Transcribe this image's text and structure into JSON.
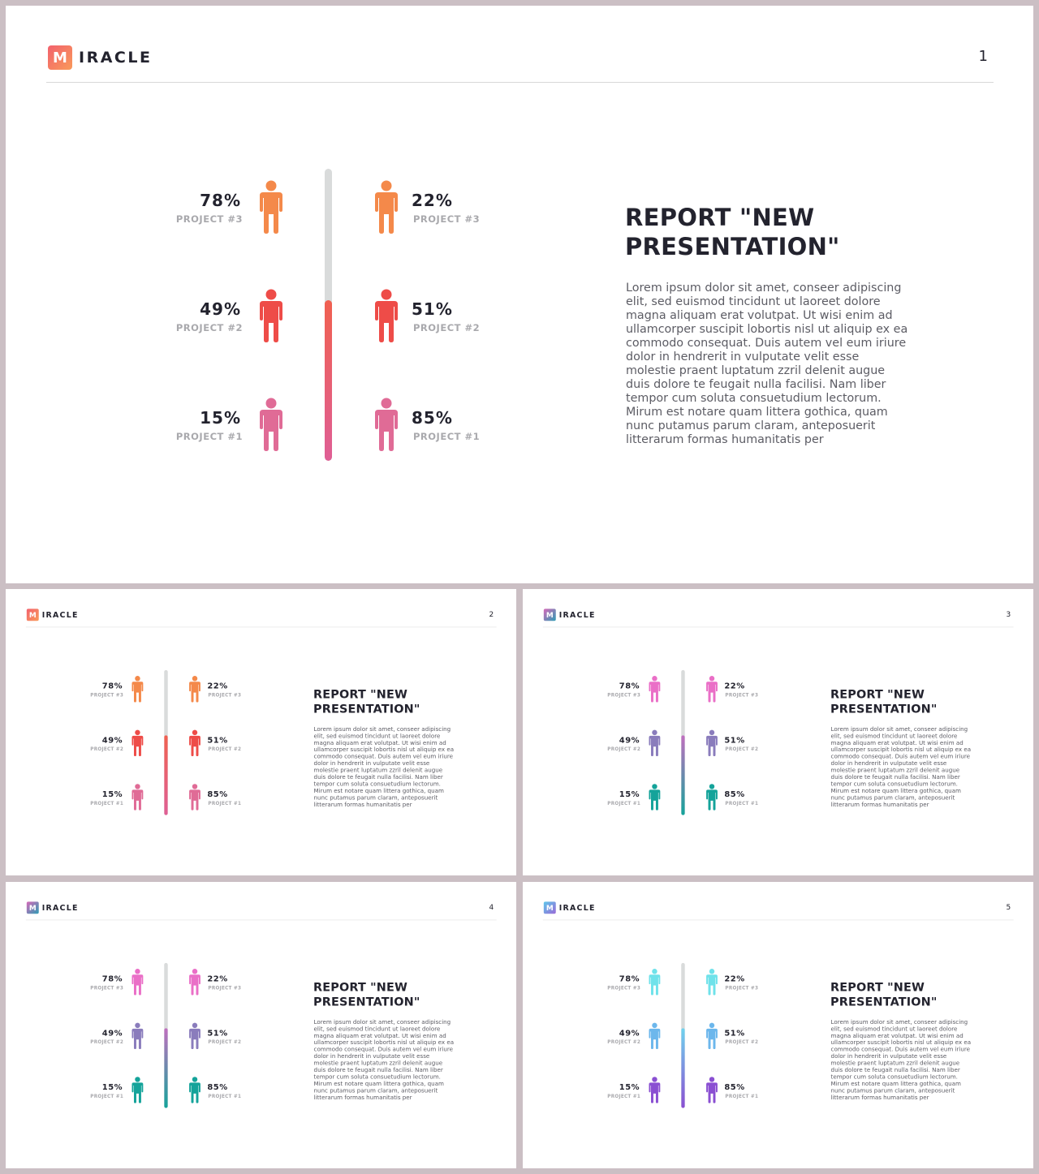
{
  "slides": [
    {
      "page": "1",
      "logo_mark": "M",
      "logo_text": "IRACLE",
      "logo_colors": [
        "#f2616d",
        "#f99a5a"
      ],
      "title": "REPORT \"NEW PRESENTATION\"",
      "body": "Lorem ipsum dolor sit amet, conseer adipiscing elit, sed euismod tincidunt ut laoreet dolore magna aliquam erat volutpat. Ut wisi enim ad ullamcorper suscipit lobortis nisl ut aliquip ex ea commodo consequat. Duis autem vel eum iriure dolor in hendrerit in vulputate velit esse molestie praent luptatum zzril delenit augue duis dolore te feugait nulla facilisi. Nam liber tempor cum soluta consuetudium lectorum. Mirum est notare quam littera gothica, quam nunc putamus parum claram, anteposuerit litterarum formas humanitatis per",
      "left_column": [
        {
          "value": "78%",
          "label": "PROJECT #3",
          "icon": "person-icon",
          "color": "#f4894a"
        },
        {
          "value": "49%",
          "label": "PROJECT #2",
          "icon": "person-icon",
          "color": "#ee4c48"
        },
        {
          "value": "15%",
          "label": "PROJECT #1",
          "icon": "person-icon",
          "color": "#e06b96"
        }
      ],
      "right_column": [
        {
          "value": "22%",
          "label": "PROJECT #3",
          "icon": "person-icon",
          "color": "#f4894a"
        },
        {
          "value": "51%",
          "label": "PROJECT #2",
          "icon": "person-icon",
          "color": "#ee4c48"
        },
        {
          "value": "85%",
          "label": "PROJECT #1",
          "icon": "person-icon",
          "color": "#e06b96"
        }
      ],
      "bar_fill_fraction": 0.55,
      "bar_colors": [
        "#f06050",
        "#df5f95"
      ]
    },
    {
      "page": "2",
      "logo_mark": "M",
      "logo_text": "IRACLE",
      "logo_colors": [
        "#f2616d",
        "#f99a5a"
      ],
      "title": "REPORT \"NEW PRESENTATION\"",
      "body": "Lorem ipsum dolor sit amet, conseer adipiscing elit, sed euismod tincidunt ut laoreet dolore magna aliquam erat volutpat. Ut wisi enim ad ullamcorper suscipit lobortis nisl ut aliquip ex ea commodo consequat. Duis autem vel eum iriure dolor in hendrerit in vulputate velit esse molestie praent luptatum zzril delenit augue duis dolore te feugait nulla facilisi. Nam liber tempor cum soluta consuetudium lectorum. Mirum est notare quam littera gothica, quam nunc putamus parum claram, anteposuerit litterarum formas humanitatis per",
      "left_column": [
        {
          "value": "78%",
          "label": "PROJECT #3",
          "icon": "person-icon",
          "color": "#f4894a"
        },
        {
          "value": "49%",
          "label": "PROJECT #2",
          "icon": "person-icon",
          "color": "#ee4c48"
        },
        {
          "value": "15%",
          "label": "PROJECT #1",
          "icon": "person-icon",
          "color": "#e06b96"
        }
      ],
      "right_column": [
        {
          "value": "22%",
          "label": "PROJECT #3",
          "icon": "person-icon",
          "color": "#f4894a"
        },
        {
          "value": "51%",
          "label": "PROJECT #2",
          "icon": "person-icon",
          "color": "#ee4c48"
        },
        {
          "value": "85%",
          "label": "PROJECT #1",
          "icon": "person-icon",
          "color": "#e06b96"
        }
      ],
      "bar_fill_fraction": 0.55,
      "bar_colors": [
        "#f06050",
        "#df5f95"
      ]
    },
    {
      "page": "3",
      "logo_mark": "M",
      "logo_text": "IRACLE",
      "logo_colors": [
        "#d768b8",
        "#2e9db5"
      ],
      "title": "REPORT \"NEW PRESENTATION\"",
      "body": "Lorem ipsum dolor sit amet, conseer adipiscing elit, sed euismod tincidunt ut laoreet dolore magna aliquam erat volutpat. Ut wisi enim ad ullamcorper suscipit lobortis nisl ut aliquip ex ea commodo consequat. Duis autem vel eum iriure dolor in hendrerit in vulputate velit esse molestie praent luptatum zzril delenit augue duis dolore te feugait nulla facilisi. Nam liber tempor cum soluta consuetudium lectorum. Mirum est notare quam littera gothica, quam nunc putamus parum claram, anteposuerit litterarum formas humanitatis per",
      "left_column": [
        {
          "value": "78%",
          "label": "PROJECT #3",
          "icon": "person-icon",
          "color": "#ea6fc7"
        },
        {
          "value": "49%",
          "label": "PROJECT #2",
          "icon": "person-icon",
          "color": "#8a7cbc"
        },
        {
          "value": "15%",
          "label": "PROJECT #1",
          "icon": "person-icon",
          "color": "#14a39a"
        }
      ],
      "right_column": [
        {
          "value": "22%",
          "label": "PROJECT #3",
          "icon": "person-icon",
          "color": "#ea6fc7"
        },
        {
          "value": "51%",
          "label": "PROJECT #2",
          "icon": "person-icon",
          "color": "#8a7cbc"
        },
        {
          "value": "85%",
          "label": "PROJECT #1",
          "icon": "person-icon",
          "color": "#14a39a"
        }
      ],
      "bar_fill_fraction": 0.55,
      "bar_colors": [
        "#c06fbf",
        "#14a39a"
      ]
    },
    {
      "page": "4",
      "logo_mark": "M",
      "logo_text": "IRACLE",
      "logo_colors": [
        "#d768b8",
        "#2e9db5"
      ],
      "title": "REPORT \"NEW PRESENTATION\"",
      "body": "Lorem ipsum dolor sit amet, conseer adipiscing elit, sed euismod tincidunt ut laoreet dolore magna aliquam erat volutpat. Ut wisi enim ad ullamcorper suscipit lobortis nisl ut aliquip ex ea commodo consequat. Duis autem vel eum iriure dolor in hendrerit in vulputate velit esse molestie praent luptatum zzril delenit augue duis dolore te feugait nulla facilisi. Nam liber tempor cum soluta consuetudium lectorum. Mirum est notare quam littera gothica, quam nunc putamus parum claram, anteposuerit litterarum formas humanitatis per",
      "left_column": [
        {
          "value": "78%",
          "label": "PROJECT #3",
          "icon": "person-icon",
          "color": "#ea6fc7"
        },
        {
          "value": "49%",
          "label": "PROJECT #2",
          "icon": "person-icon",
          "color": "#8a7cbc"
        },
        {
          "value": "15%",
          "label": "PROJECT #1",
          "icon": "person-icon",
          "color": "#14a39a"
        }
      ],
      "right_column": [
        {
          "value": "22%",
          "label": "PROJECT #3",
          "icon": "person-icon",
          "color": "#ea6fc7"
        },
        {
          "value": "51%",
          "label": "PROJECT #2",
          "icon": "person-icon",
          "color": "#8a7cbc"
        },
        {
          "value": "85%",
          "label": "PROJECT #1",
          "icon": "person-icon",
          "color": "#14a39a"
        }
      ],
      "bar_fill_fraction": 0.55,
      "bar_colors": [
        "#c06fbf",
        "#14a39a"
      ]
    },
    {
      "page": "5",
      "logo_mark": "M",
      "logo_text": "IRACLE",
      "logo_colors": [
        "#5dc7ea",
        "#9a6ad8"
      ],
      "title": "REPORT \"NEW PRESENTATION\"",
      "body": "Lorem ipsum dolor sit amet, conseer adipiscing elit, sed euismod tincidunt ut laoreet dolore magna aliquam erat volutpat. Ut wisi enim ad ullamcorper suscipit lobortis nisl ut aliquip ex ea commodo consequat. Duis autem vel eum iriure dolor in hendrerit in vulputate velit esse molestie praent luptatum zzril delenit augue duis dolore te feugait nulla facilisi. Nam liber tempor cum soluta consuetudium lectorum. Mirum est notare quam littera gothica, quam nunc putamus parum claram, anteposuerit litterarum formas humanitatis per",
      "left_column": [
        {
          "value": "78%",
          "label": "PROJECT #3",
          "icon": "person-icon",
          "color": "#6fe2ea"
        },
        {
          "value": "49%",
          "label": "PROJECT #2",
          "icon": "person-icon",
          "color": "#6cb7ec"
        },
        {
          "value": "15%",
          "label": "PROJECT #1",
          "icon": "person-icon",
          "color": "#8a4fd2"
        }
      ],
      "right_column": [
        {
          "value": "22%",
          "label": "PROJECT #3",
          "icon": "person-icon",
          "color": "#6fe2ea"
        },
        {
          "value": "51%",
          "label": "PROJECT #2",
          "icon": "person-icon",
          "color": "#6cb7ec"
        },
        {
          "value": "85%",
          "label": "PROJECT #1",
          "icon": "person-icon",
          "color": "#8a4fd2"
        }
      ],
      "bar_fill_fraction": 0.55,
      "bar_colors": [
        "#6fd3ee",
        "#8a4fd2"
      ]
    }
  ]
}
